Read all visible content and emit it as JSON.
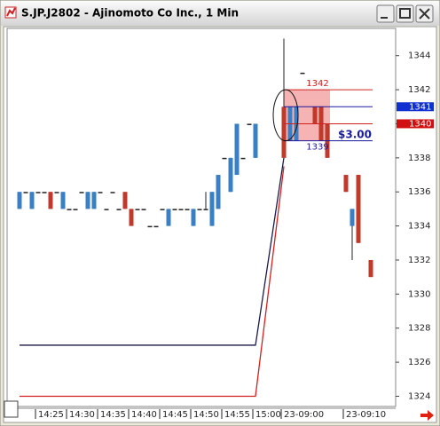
{
  "window": {
    "title": "S.JP.J2802 - Ajinomoto Co Inc., 1 Min"
  },
  "chart_data": {
    "type": "candlestick",
    "x": [
      "14:22",
      "14:23",
      "14:24",
      "14:25",
      "14:26",
      "14:27",
      "14:28",
      "14:29",
      "14:30",
      "14:31",
      "14:32",
      "14:33",
      "14:34",
      "14:35",
      "14:36",
      "14:37",
      "14:38",
      "14:39",
      "14:40",
      "14:41",
      "14:42",
      "14:43",
      "14:44",
      "14:45",
      "14:46",
      "14:47",
      "14:48",
      "14:49",
      "14:50",
      "14:51",
      "14:52",
      "14:53",
      "14:54",
      "14:55",
      "14:56",
      "14:57",
      "14:58",
      "14:59",
      "15:00",
      "23-09:00",
      "23-09:01",
      "23-09:02",
      "23-09:03",
      "23-09:05",
      "23-09:06",
      "23-09:07",
      "23-09:10",
      "23-09:11",
      "23-09:12",
      "23-09:14"
    ],
    "open": [
      1335,
      1336,
      1335,
      1336,
      1336,
      1336,
      1336,
      1335,
      1335,
      1335,
      1336,
      1335,
      1335,
      1336,
      1335,
      1336,
      1335,
      1336,
      1335,
      1335,
      1335,
      1334,
      1334,
      1335,
      1334,
      1335,
      1335,
      1335,
      1334,
      1335,
      1335,
      1334,
      1335,
      1338,
      1336,
      1337,
      1338,
      1340,
      1338,
      1341,
      1339,
      1339,
      1343,
      1341,
      1341,
      1340,
      1337,
      1334,
      1337,
      1332
    ],
    "high": [
      1336,
      1336,
      1336,
      1336,
      1336,
      1336,
      1336,
      1336,
      1335,
      1335,
      1336,
      1336,
      1336,
      1336,
      1335,
      1336,
      1335,
      1336,
      1335,
      1335,
      1335,
      1334,
      1334,
      1335,
      1335,
      1335,
      1335,
      1335,
      1335,
      1335,
      1336,
      1336,
      1337,
      1338,
      1338,
      1340,
      1338,
      1340,
      1340,
      1345,
      1341,
      1341,
      1343,
      1341,
      1341,
      1340,
      1337,
      1335,
      1337,
      1332
    ],
    "low": [
      1335,
      1336,
      1335,
      1336,
      1336,
      1335,
      1336,
      1335,
      1335,
      1335,
      1336,
      1335,
      1335,
      1336,
      1335,
      1336,
      1335,
      1335,
      1334,
      1335,
      1335,
      1334,
      1334,
      1335,
      1334,
      1335,
      1335,
      1335,
      1334,
      1335,
      1335,
      1334,
      1335,
      1338,
      1336,
      1337,
      1338,
      1340,
      1338,
      1338,
      1339,
      1339,
      1343,
      1340,
      1339,
      1338,
      1336,
      1332,
      1333,
      1331
    ],
    "close": [
      1336,
      1336,
      1336,
      1336,
      1336,
      1335,
      1336,
      1336,
      1335,
      1335,
      1336,
      1336,
      1336,
      1336,
      1335,
      1336,
      1335,
      1335,
      1334,
      1335,
      1335,
      1334,
      1334,
      1335,
      1335,
      1335,
      1335,
      1335,
      1335,
      1335,
      1335,
      1336,
      1337,
      1338,
      1338,
      1340,
      1338,
      1340,
      1340,
      1338,
      1341,
      1341,
      1343,
      1340,
      1339,
      1338,
      1336,
      1335,
      1333,
      1331
    ],
    "up_color": "#3a7fc4",
    "down_color": "#c0392b",
    "lines": [
      {
        "color": "#1a1a4a",
        "x": [
          "14:22",
          "15:00",
          "23-09:00"
        ],
        "values": [
          1327,
          1327,
          1338
        ]
      },
      {
        "color": "#d02020",
        "x": [
          "14:22",
          "15:00",
          "23-09:00"
        ],
        "values": [
          1324,
          1324,
          1337.5
        ]
      }
    ],
    "orders": [
      {
        "value": 1342,
        "color": "#d02020",
        "label": "1342"
      },
      {
        "value": 1341,
        "color": "#1a1aa0"
      },
      {
        "value": 1340,
        "color": "#d02020"
      },
      {
        "value": 1339,
        "color": "#1a1aa0",
        "label": "1339"
      }
    ],
    "spread_label": "$3.00",
    "zone": {
      "from": "23-09:00",
      "to": "23-09:07",
      "low": 1339,
      "high": 1342,
      "color": "#f4a0a0"
    },
    "markers": [
      {
        "value": 1341,
        "color": "#1030d0"
      },
      {
        "value": 1340,
        "color": "#d01010"
      }
    ],
    "ylim": [
      1323.4,
      1345.6
    ],
    "yticks": [
      1324,
      1326,
      1328,
      1330,
      1332,
      1334,
      1336,
      1338,
      1340,
      1342,
      1344
    ],
    "xticks": [
      "14:25",
      "14:30",
      "14:35",
      "14:40",
      "14:45",
      "14:50",
      "14:55",
      "15:00",
      "23-09:00",
      "23-09:10"
    ]
  }
}
